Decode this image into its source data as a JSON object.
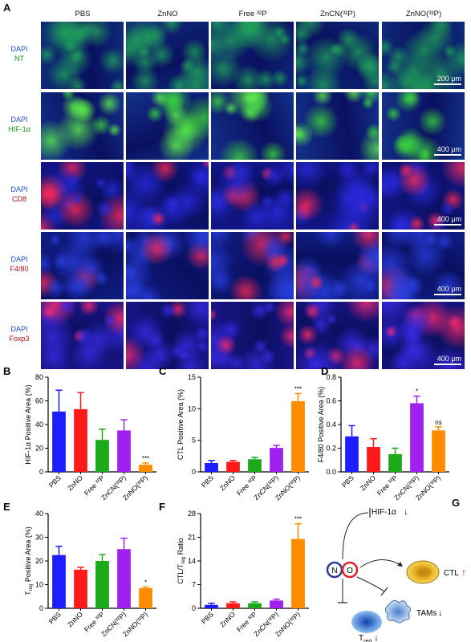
{
  "panels": {
    "A": "A",
    "B": "B",
    "C": "C",
    "D": "D",
    "E": "E",
    "F": "F",
    "G": "G"
  },
  "groups": [
    "PBS",
    "ZnNO",
    "Free ³²P",
    "ZnCN(³²P)",
    "ZnNO(³²P)"
  ],
  "group_colors": [
    "#1d1dff",
    "#ff1a1a",
    "#1aaa1a",
    "#a020f0",
    "#ff8c00"
  ],
  "rows": [
    {
      "stain1": "DAPI",
      "stain2": "NT",
      "stain2_color": "#1a9a1a",
      "scale": "200 μm",
      "base": "#0d2a78",
      "accent": "#1fa05a",
      "bright": "#27c24a"
    },
    {
      "stain1": "DAPI",
      "stain2": "HIF-1α",
      "stain2_color": "#1a9a1a",
      "scale": "400 μm",
      "base": "#13318a",
      "accent": "#3bd83b",
      "bright": "#5cf04a"
    },
    {
      "stain1": "DAPI",
      "stain2": "CD8",
      "stain2_color": "#b01010",
      "scale": "400 μm",
      "base": "#12168a",
      "accent": "#2a2ae0",
      "bright": "#ff2a55"
    },
    {
      "stain1": "DAPI",
      "stain2": "F4/80",
      "stain2_color": "#b01010",
      "scale": "400 μm",
      "base": "#0f1e86",
      "accent": "#2a3ee0",
      "bright": "#ff2a55"
    },
    {
      "stain1": "DAPI",
      "stain2": "Foxp3",
      "stain2_color": "#b01010",
      "scale": "400 μm",
      "base": "#1a1488",
      "accent": "#3a2ae8",
      "bright": "#ff2a6a"
    }
  ],
  "chart_data": [
    {
      "panel": "B",
      "type": "bar",
      "categories": [
        "PBS",
        "ZnNO",
        "Free ³²P",
        "ZnCN(³²P)",
        "ZnNO(³²P)"
      ],
      "values": [
        51,
        53,
        27,
        35,
        6
      ],
      "errors": [
        18,
        14,
        9,
        9,
        1.5
      ],
      "ylabel": "HIF-1α Positive Area (%)",
      "ylim": [
        0,
        80
      ],
      "yticks": [
        "0",
        "20",
        "40",
        "60",
        "80"
      ],
      "significance": [
        "",
        "",
        "",
        "",
        "***"
      ]
    },
    {
      "panel": "C",
      "type": "bar",
      "categories": [
        "PBS",
        "ZnNO",
        "Free ³²P",
        "ZnCN(³²P)",
        "ZnNO(³²P)"
      ],
      "values": [
        1.4,
        1.6,
        2.0,
        3.8,
        11.2
      ],
      "errors": [
        0.4,
        0.2,
        0.3,
        0.4,
        1.2
      ],
      "ylabel": "CTL Positive Area (%)",
      "ylim": [
        0,
        15
      ],
      "yticks": [
        "0",
        "5",
        "10",
        "15"
      ],
      "significance": [
        "",
        "",
        "",
        "",
        "***"
      ]
    },
    {
      "panel": "D",
      "type": "bar",
      "categories": [
        "PBS",
        "ZnNO",
        "Free ³²P",
        "ZnCN(³²P)",
        "ZnNO(³²P)"
      ],
      "values": [
        0.3,
        0.21,
        0.15,
        0.58,
        0.35
      ],
      "errors": [
        0.09,
        0.07,
        0.05,
        0.06,
        0.03
      ],
      "ylabel": "F4/80 Positive Area (%)",
      "ylim": [
        0,
        0.8
      ],
      "yticks": [
        "0.0",
        "0.2",
        "0.4",
        "0.6",
        "0.8"
      ],
      "significance": [
        "",
        "",
        "",
        "*",
        "ns"
      ]
    },
    {
      "panel": "E",
      "type": "bar",
      "categories": [
        "PBS",
        "ZnNO",
        "Free ³²P",
        "ZnCN(³²P)",
        "ZnNO(³²P)"
      ],
      "values": [
        22.5,
        16.3,
        20,
        25,
        8.5
      ],
      "errors": [
        3.7,
        1,
        2.7,
        4.6,
        0.5
      ],
      "ylabel": "Treg Positive Area (%)",
      "ylim": [
        0,
        40
      ],
      "yticks": [
        "0",
        "10",
        "20",
        "30",
        "40"
      ],
      "significance": [
        "",
        "",
        "",
        "",
        "*"
      ]
    },
    {
      "panel": "F",
      "type": "bar",
      "categories": [
        "PBS",
        "ZnNO",
        "Free ³²P",
        "ZnCN(³²P)",
        "ZnNO(³²P)"
      ],
      "values": [
        1,
        1.5,
        1.5,
        2.3,
        20.5
      ],
      "errors": [
        0.5,
        0.4,
        0.4,
        0.4,
        4.5
      ],
      "ylabel": "CTL/Treg Ratio",
      "ylim": [
        0,
        28
      ],
      "yticks": [
        "0",
        "7",
        "14",
        "21",
        "28"
      ],
      "significance": [
        "",
        "",
        "",
        "",
        "***"
      ]
    }
  ],
  "schematic": {
    "hif": "HIF-1α",
    "hif_arrow": "↓",
    "n": "N",
    "o": "O",
    "ctl": "CTL",
    "ctl_arrow": "↑",
    "tams": "TAMs",
    "tams_arrow": "↓",
    "treg": "T",
    "treg_sub": "reg",
    "treg_arrow": "↓"
  }
}
